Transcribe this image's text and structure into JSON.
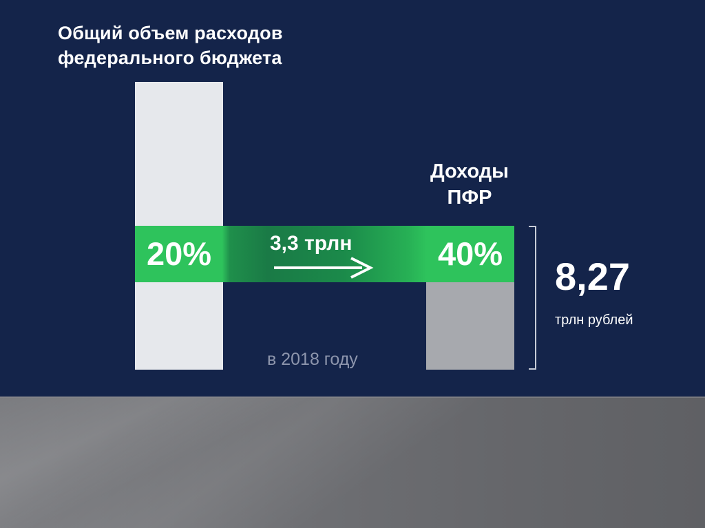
{
  "colors": {
    "background": "#14244a",
    "green": "#2ec35c",
    "light_bar": "#e6e8ec",
    "grey_bar": "#a7a9ae",
    "muted_text": "#8e96ad"
  },
  "left_block": {
    "title_line1": "Общий объем расходов",
    "title_line2": "федерального бюджета",
    "share": "20%"
  },
  "right_block": {
    "title_line1": "Доходы",
    "title_line2": "ПФР",
    "share": "40%"
  },
  "transfer": {
    "amount": "3,3 трлн",
    "arrow_icon": "right-arrow-icon"
  },
  "total": {
    "value": "8,27",
    "unit": "трлн рублей"
  },
  "year_note": "в 2018 году"
}
